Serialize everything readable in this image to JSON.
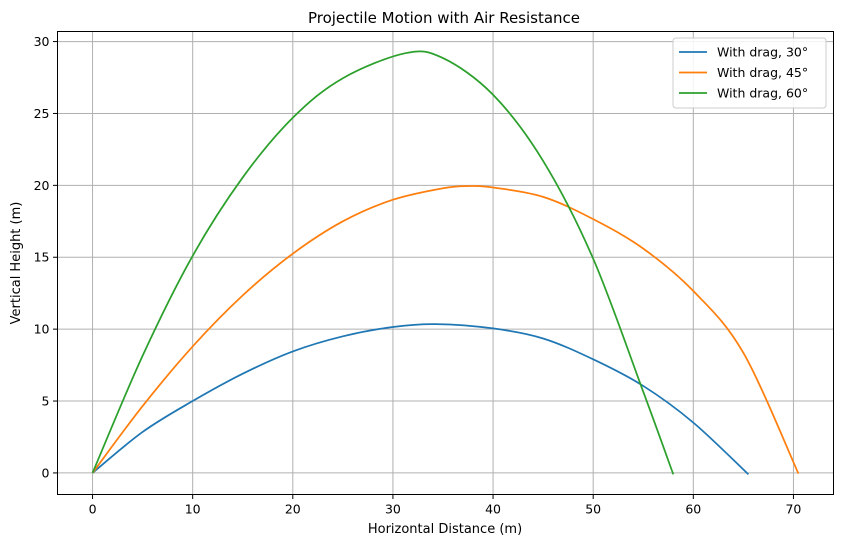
{
  "chart_data": {
    "type": "line",
    "title": "Projectile Motion with Air Resistance",
    "xlabel": "Horizontal Distance (m)",
    "ylabel": "Vertical Height (m)",
    "xlim": [
      -3.5,
      74
    ],
    "ylim": [
      -1.5,
      30.7
    ],
    "xticks": [
      0,
      10,
      20,
      30,
      40,
      50,
      60,
      70
    ],
    "yticks": [
      0,
      5,
      10,
      15,
      20,
      25,
      30
    ],
    "grid": true,
    "legend_position": "top-right",
    "series": [
      {
        "name": "With drag, 30°",
        "color": "#1f77b4",
        "points": [
          [
            0,
            0
          ],
          [
            5,
            2.85
          ],
          [
            10,
            5.0
          ],
          [
            15,
            6.9
          ],
          [
            20,
            8.45
          ],
          [
            25,
            9.5
          ],
          [
            30,
            10.15
          ],
          [
            34.3,
            10.35
          ],
          [
            40,
            10.05
          ],
          [
            45,
            9.35
          ],
          [
            50,
            7.9
          ],
          [
            55,
            6.05
          ],
          [
            60,
            3.5
          ],
          [
            65.5,
            -0.1
          ]
        ]
      },
      {
        "name": "With drag, 45°",
        "color": "#ff7f0e",
        "points": [
          [
            0,
            0
          ],
          [
            5,
            4.65
          ],
          [
            10,
            8.8
          ],
          [
            15,
            12.35
          ],
          [
            20,
            15.25
          ],
          [
            25,
            17.5
          ],
          [
            30,
            19.0
          ],
          [
            35,
            19.8
          ],
          [
            37.5,
            19.95
          ],
          [
            40,
            19.85
          ],
          [
            45,
            19.2
          ],
          [
            50,
            17.65
          ],
          [
            55,
            15.6
          ],
          [
            60,
            12.65
          ],
          [
            65,
            8.35
          ],
          [
            70.5,
            -0.05
          ]
        ]
      },
      {
        "name": "With drag, 60°",
        "color": "#2ca02c",
        "points": [
          [
            0,
            0
          ],
          [
            5,
            8.15
          ],
          [
            10,
            15.1
          ],
          [
            15,
            20.55
          ],
          [
            20,
            24.7
          ],
          [
            25,
            27.45
          ],
          [
            31.3,
            29.2
          ],
          [
            35,
            28.85
          ],
          [
            40,
            26.3
          ],
          [
            45,
            21.7
          ],
          [
            50,
            14.9
          ],
          [
            55,
            5.65
          ],
          [
            58,
            -0.1
          ]
        ]
      }
    ]
  }
}
